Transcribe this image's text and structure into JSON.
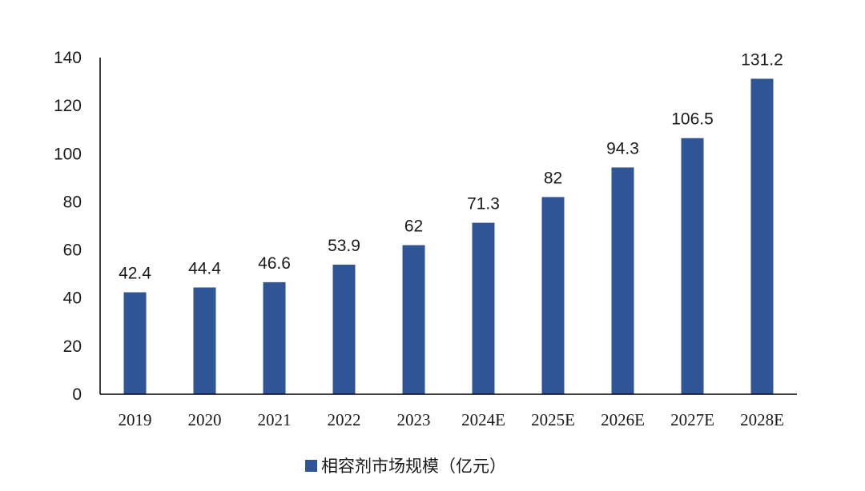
{
  "chart_data": {
    "type": "bar",
    "categories": [
      "2019",
      "2020",
      "2021",
      "2022",
      "2023",
      "2024E",
      "2025E",
      "2026E",
      "2027E",
      "2028E"
    ],
    "series": [
      {
        "name": "相容剂市场规模（亿元）",
        "values": [
          42.4,
          44.4,
          46.6,
          53.9,
          62,
          71.3,
          82,
          94.3,
          106.5,
          131.2
        ],
        "labels": [
          "42.4",
          "44.4",
          "46.6",
          "53.9",
          "62",
          "71.3",
          "82",
          "94.3",
          "106.5",
          "131.2"
        ]
      }
    ],
    "yticks": [
      "0",
      "20",
      "40",
      "60",
      "80",
      "100",
      "120",
      "140"
    ],
    "ylim": [
      0,
      140
    ],
    "title": "",
    "xlabel": "",
    "ylabel": "",
    "legend_position": "bottom",
    "grid": false,
    "colors": {
      "bar": "#2f5597",
      "axis": "#000000",
      "text": "#1a1a1a"
    }
  }
}
